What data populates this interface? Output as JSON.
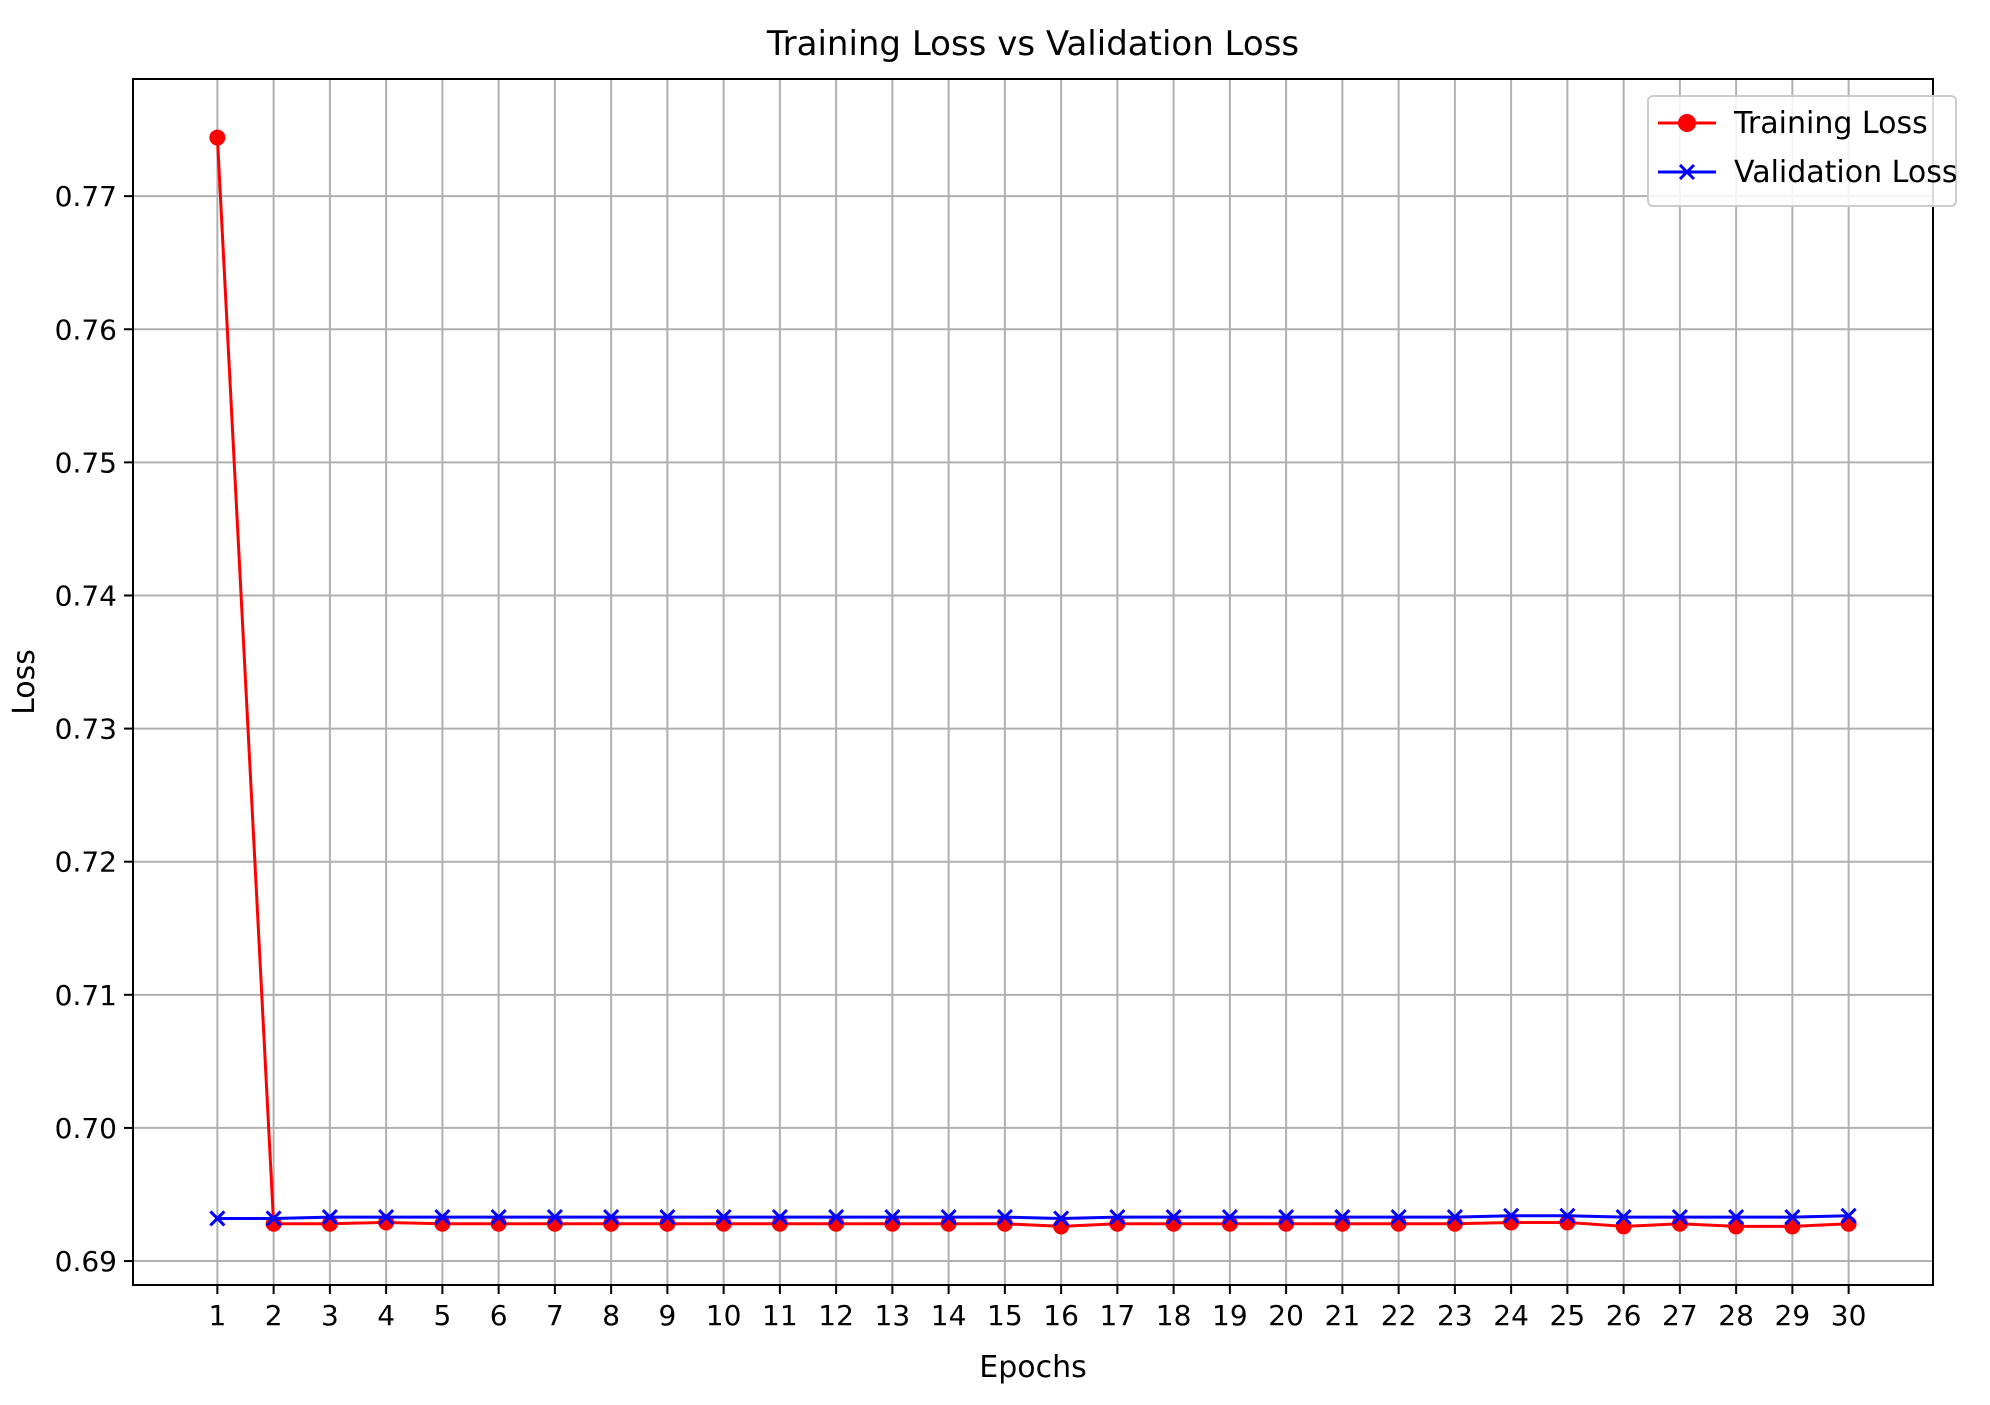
{
  "chart_data": {
    "type": "line",
    "title": "Training Loss vs Validation Loss",
    "xlabel": "Epochs",
    "ylabel": "Loss",
    "x": [
      1,
      2,
      3,
      4,
      5,
      6,
      7,
      8,
      9,
      10,
      11,
      12,
      13,
      14,
      15,
      16,
      17,
      18,
      19,
      20,
      21,
      22,
      23,
      24,
      25,
      26,
      27,
      28,
      29,
      30
    ],
    "xlim": [
      -0.5,
      31.5
    ],
    "ylim": [
      0.6882,
      0.7788
    ],
    "yticks": [
      0.69,
      0.7,
      0.71,
      0.72,
      0.73,
      0.74,
      0.75,
      0.76,
      0.77
    ],
    "ytick_labels": [
      "0.69",
      "0.70",
      "0.71",
      "0.72",
      "0.73",
      "0.74",
      "0.75",
      "0.76",
      "0.77"
    ],
    "grid": true,
    "legend_position": "top-right",
    "series": [
      {
        "name": "Training Loss",
        "color": "#ff0000",
        "marker": "circle",
        "values": [
          0.7744,
          0.6928,
          0.6928,
          0.6929,
          0.6928,
          0.6928,
          0.6928,
          0.6928,
          0.6928,
          0.6928,
          0.6928,
          0.6928,
          0.6928,
          0.6928,
          0.6928,
          0.6926,
          0.6928,
          0.6928,
          0.6928,
          0.6928,
          0.6928,
          0.6928,
          0.6928,
          0.6929,
          0.6929,
          0.6926,
          0.6928,
          0.6926,
          0.6926,
          0.6928
        ]
      },
      {
        "name": "Validation Loss",
        "color": "#0000ff",
        "marker": "x",
        "values": [
          0.6932,
          0.6932,
          0.6933,
          0.6933,
          0.6933,
          0.6933,
          0.6933,
          0.6933,
          0.6933,
          0.6933,
          0.6933,
          0.6933,
          0.6933,
          0.6933,
          0.6933,
          0.6932,
          0.6933,
          0.6933,
          0.6933,
          0.6933,
          0.6933,
          0.6933,
          0.6933,
          0.6934,
          0.6934,
          0.6933,
          0.6933,
          0.6933,
          0.6933,
          0.6934
        ]
      }
    ]
  }
}
